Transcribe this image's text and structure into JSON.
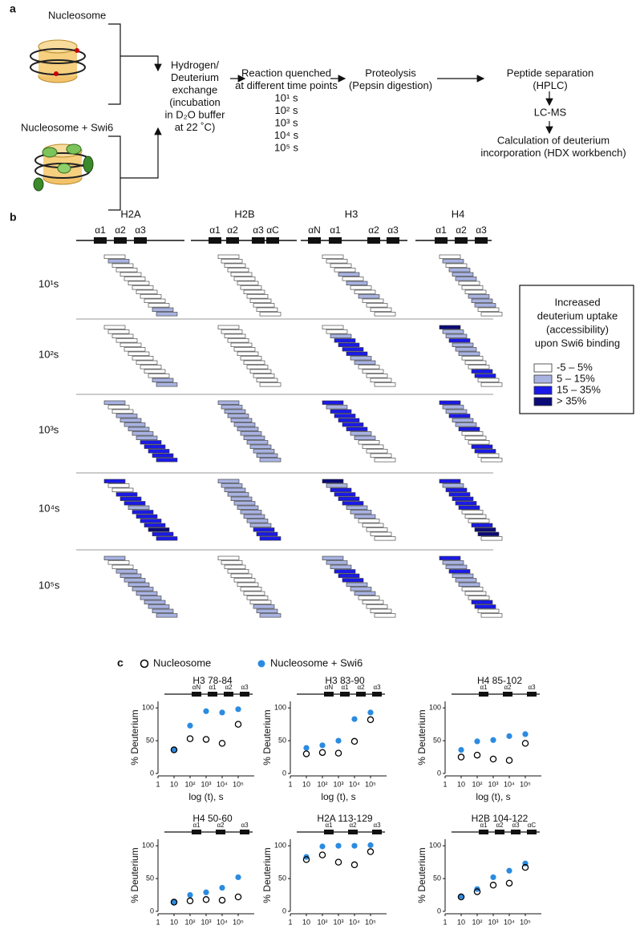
{
  "panel_a": {
    "label": "a",
    "inputs": [
      "Nucleosome",
      "Nucleosome + Swi6"
    ],
    "steps": [
      [
        "Hydrogen/",
        "Deuterium",
        "exchange",
        "(incubation",
        "in D₂O  buffer",
        "at 22 ˚C)"
      ],
      [
        "Reaction quenched",
        "at different time points",
        "10¹ s",
        "10² s",
        "10³ s",
        "10⁴ s",
        "10⁵ s"
      ],
      [
        "Proteolysis",
        "(Pepsin digestion)"
      ],
      [
        "Peptide separation",
        "(HPLC)"
      ],
      [
        "LC-MS"
      ],
      [
        "Calculation of deuterium",
        "incorporation (HDX workbench)"
      ]
    ]
  },
  "panel_b": {
    "label": "b",
    "histones": [
      "H2A",
      "H2B",
      "H3",
      "H4"
    ],
    "helices": [
      [
        "α1",
        "α2",
        "α3"
      ],
      [
        "α1",
        "α2",
        "α3",
        "αC"
      ],
      [
        "αN",
        "α1",
        "α2",
        "α3"
      ],
      [
        "α1",
        "α2",
        "α3"
      ]
    ],
    "times": [
      "10¹s",
      "10²s",
      "10³s",
      "10⁴s",
      "10⁵s"
    ],
    "legend": {
      "title": [
        "Increased",
        "deuterium uptake",
        "(accessibility)",
        "upon Swi6 binding"
      ],
      "labels": [
        "-5 – 5%",
        "5 – 15%",
        "15 – 35%",
        "> 35%"
      ],
      "colors": [
        "#ffffff",
        "#a9b3e2",
        "#1a1ae8",
        "#0b0b78"
      ]
    },
    "levels": [
      [
        [
          0,
          1,
          0,
          0,
          0,
          0,
          0,
          0,
          0,
          0,
          0,
          0,
          1,
          1
        ],
        [
          0,
          0,
          0,
          0,
          0,
          0,
          0,
          0,
          0,
          0,
          0,
          0,
          0,
          0
        ],
        [
          0,
          0,
          0,
          0,
          1,
          0,
          1,
          0,
          0,
          1,
          0,
          0,
          0,
          0
        ],
        [
          0,
          1,
          0,
          1,
          1,
          1,
          0,
          0,
          0,
          1,
          1,
          1,
          0,
          0
        ]
      ],
      [
        [
          0,
          0,
          0,
          0,
          0,
          0,
          0,
          0,
          0,
          0,
          0,
          0,
          1,
          1
        ],
        [
          0,
          0,
          0,
          0,
          0,
          0,
          0,
          0,
          0,
          0,
          0,
          0,
          0,
          0
        ],
        [
          0,
          0,
          1,
          2,
          2,
          2,
          2,
          1,
          1,
          0,
          0,
          0,
          0,
          0
        ],
        [
          3,
          1,
          1,
          2,
          1,
          1,
          1,
          0,
          0,
          0,
          2,
          2,
          0,
          0
        ]
      ],
      [
        [
          1,
          0,
          0,
          1,
          1,
          1,
          1,
          1,
          1,
          2,
          2,
          2,
          2,
          2
        ],
        [
          1,
          1,
          1,
          1,
          1,
          1,
          1,
          1,
          1,
          1,
          1,
          1,
          1,
          1
        ],
        [
          2,
          1,
          2,
          2,
          2,
          2,
          2,
          1,
          1,
          0,
          0,
          0,
          0,
          0
        ],
        [
          2,
          1,
          1,
          2,
          1,
          1,
          2,
          0,
          0,
          0,
          2,
          2,
          0,
          0
        ]
      ],
      [
        [
          2,
          0,
          0,
          2,
          2,
          2,
          1,
          2,
          2,
          2,
          2,
          3,
          2,
          2
        ],
        [
          1,
          1,
          1,
          1,
          1,
          1,
          1,
          1,
          1,
          1,
          1,
          2,
          2,
          2
        ],
        [
          3,
          1,
          2,
          2,
          2,
          2,
          1,
          1,
          1,
          0,
          0,
          0,
          0,
          0
        ],
        [
          2,
          1,
          2,
          2,
          2,
          2,
          2,
          0,
          0,
          0,
          2,
          3,
          3,
          0
        ]
      ],
      [
        [
          1,
          0,
          0,
          1,
          1,
          1,
          1,
          1,
          1,
          1,
          1,
          1,
          1,
          1
        ],
        [
          0,
          0,
          0,
          0,
          0,
          0,
          0,
          0,
          0,
          0,
          0,
          1,
          1,
          1
        ],
        [
          1,
          1,
          1,
          2,
          2,
          2,
          1,
          1,
          1,
          0,
          0,
          0,
          0,
          0
        ],
        [
          2,
          1,
          1,
          2,
          1,
          1,
          1,
          0,
          0,
          0,
          2,
          2,
          0,
          0
        ]
      ]
    ]
  },
  "panel_c": {
    "label": "c"
  },
  "chart_data": [
    {
      "type": "scatter",
      "title": "H3 78-84",
      "domain_labels": [
        "αN",
        "α1",
        "α2",
        "α3"
      ],
      "xlabel": "log (t), s",
      "ylabel": "% Deuterium",
      "log_x": true,
      "x": [
        10,
        100,
        1000,
        10000,
        100000
      ],
      "xlim": [
        1,
        1000000
      ],
      "ylim": [
        0,
        110
      ],
      "xticks": [
        1,
        10,
        {
          "value": 100,
          "label": "10²"
        },
        {
          "value": 1000,
          "label": "10³"
        },
        {
          "value": 10000,
          "label": "10⁴"
        },
        {
          "value": 100000,
          "label": "10⁵"
        }
      ],
      "yticks": [
        0,
        50,
        100
      ],
      "series": [
        {
          "name": "Nucleosome + Swi6",
          "color": "#2b8be0",
          "hollow": false,
          "values": [
            36,
            73,
            95,
            93,
            98
          ]
        },
        {
          "name": "Nucleosome",
          "color": "#000000",
          "hollow": true,
          "values": [
            36,
            53,
            52,
            46,
            75
          ]
        }
      ]
    },
    {
      "type": "scatter",
      "title": "H3 83-90",
      "domain_labels": [
        "αN",
        "α1",
        "α2",
        "α3"
      ],
      "xlabel": "log (t), s",
      "ylabel": "% Deuterium",
      "log_x": true,
      "x": [
        10,
        100,
        1000,
        10000,
        100000
      ],
      "xlim": [
        1,
        1000000
      ],
      "ylim": [
        0,
        110
      ],
      "xticks": [
        1,
        10,
        {
          "value": 100,
          "label": "10²"
        },
        {
          "value": 1000,
          "label": "10³"
        },
        {
          "value": 10000,
          "label": "10⁴"
        },
        {
          "value": 100000,
          "label": "10⁵"
        }
      ],
      "yticks": [
        0,
        50,
        100
      ],
      "series": [
        {
          "name": "Nucleosome + Swi6",
          "color": "#2b8be0",
          "hollow": false,
          "values": [
            39,
            43,
            50,
            83,
            93
          ]
        },
        {
          "name": "Nucleosome",
          "color": "#000000",
          "hollow": true,
          "values": [
            30,
            32,
            31,
            49,
            82
          ]
        }
      ]
    },
    {
      "type": "scatter",
      "title": "H4 85-102",
      "domain_labels": [
        "α1",
        "α2",
        "α3"
      ],
      "xlabel": "log (t), s",
      "ylabel": "% Deuterium",
      "log_x": true,
      "x": [
        10,
        100,
        1000,
        10000,
        100000
      ],
      "xlim": [
        1,
        1000000
      ],
      "ylim": [
        0,
        110
      ],
      "xticks": [
        1,
        10,
        {
          "value": 100,
          "label": "10²"
        },
        {
          "value": 1000,
          "label": "10³"
        },
        {
          "value": 10000,
          "label": "10⁴"
        },
        {
          "value": 100000,
          "label": "10⁵"
        }
      ],
      "yticks": [
        0,
        50,
        100
      ],
      "series": [
        {
          "name": "Nucleosome + Swi6",
          "color": "#2b8be0",
          "hollow": false,
          "values": [
            36,
            49,
            51,
            57,
            60
          ]
        },
        {
          "name": "Nucleosome",
          "color": "#000000",
          "hollow": true,
          "values": [
            25,
            28,
            22,
            20,
            46
          ]
        }
      ]
    },
    {
      "type": "scatter",
      "title": "H4 50-60",
      "domain_labels": [
        "α1",
        "α2",
        "α3"
      ],
      "xlabel": "log (t), s",
      "ylabel": "% Deuterium",
      "log_x": true,
      "x": [
        10,
        100,
        1000,
        10000,
        100000
      ],
      "xlim": [
        1,
        1000000
      ],
      "ylim": [
        0,
        110
      ],
      "xticks": [
        1,
        10,
        {
          "value": 100,
          "label": "10²"
        },
        {
          "value": 1000,
          "label": "10³"
        },
        {
          "value": 10000,
          "label": "10⁴"
        },
        {
          "value": 100000,
          "label": "10⁵"
        }
      ],
      "yticks": [
        0,
        50,
        100
      ],
      "series": [
        {
          "name": "Nucleosome + Swi6",
          "color": "#2b8be0",
          "hollow": false,
          "values": [
            14,
            25,
            29,
            36,
            52
          ]
        },
        {
          "name": "Nucleosome",
          "color": "#000000",
          "hollow": true,
          "values": [
            14,
            16,
            18,
            17,
            22
          ]
        }
      ]
    },
    {
      "type": "scatter",
      "title": "H2A 113-129",
      "domain_labels": [
        "α1",
        "α2",
        "α3"
      ],
      "xlabel": "log (t), s",
      "ylabel": "% Deuterium",
      "log_x": true,
      "x": [
        10,
        100,
        1000,
        10000,
        100000
      ],
      "xlim": [
        1,
        1000000
      ],
      "ylim": [
        0,
        110
      ],
      "xticks": [
        1,
        10,
        {
          "value": 100,
          "label": "10²"
        },
        {
          "value": 1000,
          "label": "10³"
        },
        {
          "value": 10000,
          "label": "10⁴"
        },
        {
          "value": 100000,
          "label": "10⁵"
        }
      ],
      "yticks": [
        0,
        50,
        100
      ],
      "series": [
        {
          "name": "Nucleosome + Swi6",
          "color": "#2b8be0",
          "hollow": false,
          "values": [
            83,
            99,
            100,
            100,
            101
          ]
        },
        {
          "name": "Nucleosome",
          "color": "#000000",
          "hollow": true,
          "values": [
            79,
            86,
            75,
            71,
            91
          ]
        }
      ]
    },
    {
      "type": "scatter",
      "title": "H2B 104-122",
      "domain_labels": [
        "α1",
        "α2",
        "α3",
        "αC"
      ],
      "xlabel": "log (t), s",
      "ylabel": "% Deuterium",
      "log_x": true,
      "x": [
        10,
        100,
        1000,
        10000,
        100000
      ],
      "xlim": [
        1,
        1000000
      ],
      "ylim": [
        0,
        110
      ],
      "xticks": [
        1,
        10,
        {
          "value": 100,
          "label": "10²"
        },
        {
          "value": 1000,
          "label": "10³"
        },
        {
          "value": 10000,
          "label": "10⁴"
        },
        {
          "value": 100000,
          "label": "10⁵"
        }
      ],
      "yticks": [
        0,
        50,
        100
      ],
      "series": [
        {
          "name": "Nucleosome + Swi6",
          "color": "#2b8be0",
          "hollow": false,
          "values": [
            23,
            34,
            52,
            62,
            73
          ]
        },
        {
          "name": "Nucleosome",
          "color": "#000000",
          "hollow": true,
          "values": [
            22,
            30,
            40,
            43,
            67
          ]
        }
      ]
    }
  ]
}
